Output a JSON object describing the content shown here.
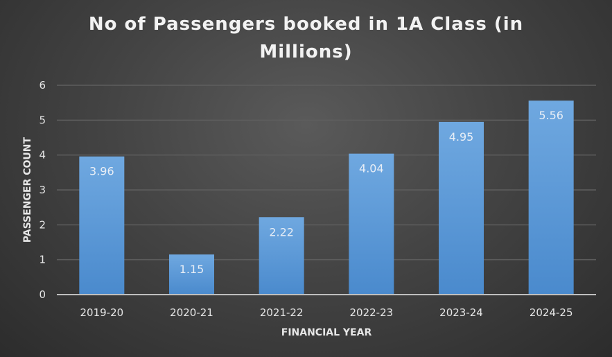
{
  "chart_data": {
    "type": "bar",
    "title_line1": "No of Passengers booked in 1A Class (in",
    "title_line2": "Millions)",
    "xlabel": "FINANCIAL YEAR",
    "ylabel": "PASSENGER COUNT",
    "categories": [
      "2019-20",
      "2020-21",
      "2021-22",
      "2022-23",
      "2023-24",
      "2024-25"
    ],
    "values": [
      3.96,
      1.15,
      2.22,
      4.04,
      4.95,
      5.56
    ],
    "data_labels": [
      "3.96",
      "1.15",
      "2.22",
      "4.04",
      "4.95",
      "5.56"
    ],
    "ylim": [
      0,
      6
    ],
    "yticks": [
      "0",
      "1",
      "2",
      "3",
      "4",
      "5",
      "6"
    ],
    "grid": true,
    "legend": "none",
    "colors": {
      "bar_top": "#6fa8e0",
      "bar_bottom": "#4a8acd",
      "grid": "#5e5e5e",
      "axis": "#bfbfbf",
      "text": "#e6e6e6"
    }
  }
}
